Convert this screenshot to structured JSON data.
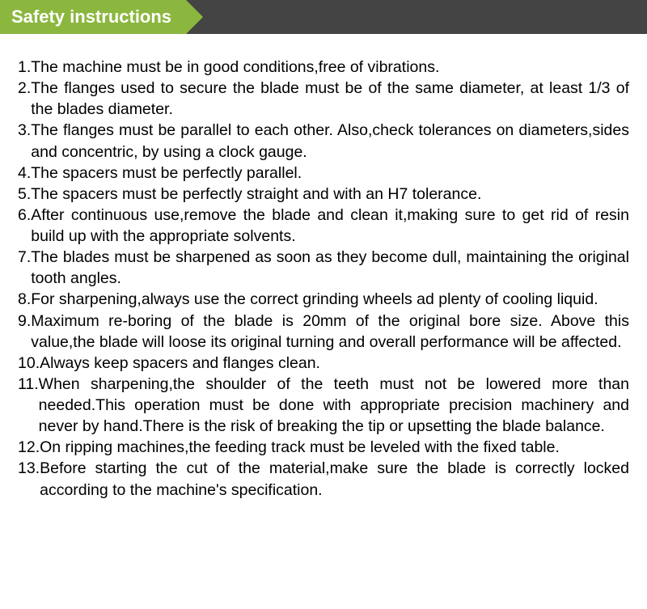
{
  "header": {
    "title": "Safety instructions",
    "tab_bg_color": "#8cb73f",
    "bar_bg_color": "#444444",
    "title_color": "#ffffff",
    "title_fontsize": 22
  },
  "body": {
    "text_color": "#000000",
    "fontsize": 19.5,
    "background_color": "#ffffff"
  },
  "instructions": [
    {
      "n": "1.",
      "text": "The machine must be in good conditions,free of vibrations."
    },
    {
      "n": "2.",
      "text": "The flanges used to secure the blade must be of the same diameter, at least 1/3 of the blades diameter."
    },
    {
      "n": "3.",
      "text": "The flanges must be parallel to each other. Also,check tolerances on diameters,sides and concentric, by using a clock gauge."
    },
    {
      "n": "4.",
      "text": "The spacers must be perfectly parallel."
    },
    {
      "n": "5.",
      "text": "The spacers must be perfectly straight and with an H7 tolerance."
    },
    {
      "n": "6.",
      "text": "After continuous use,remove the blade and clean it,making sure to get rid of resin build up with the appropriate solvents."
    },
    {
      "n": "7.",
      "text": "The blades must be sharpened as soon as they become dull, maintaining the original tooth angles."
    },
    {
      "n": "8.",
      "text": "For sharpening,always use the correct grinding wheels ad plenty of cooling liquid."
    },
    {
      "n": "9.",
      "text": "Maximum re-boring of the blade is 20mm of the original bore size. Above this value,the blade will loose its original turning and overall performance will be affected."
    },
    {
      "n": "10.",
      "text": "Always keep spacers and flanges clean."
    },
    {
      "n": "11.",
      "text": "When sharpening,the shoulder of the teeth must not be lowered more than needed.This operation must be done with appropriate precision machinery and never by hand.There is the risk of breaking the tip or upsetting the blade balance."
    },
    {
      "n": "12.",
      "text": "On ripping machines,the feeding track must be leveled with the fixed table."
    },
    {
      "n": "13.",
      "text": "Before starting the cut of the material,make sure the blade is correctly locked according to the machine's specification."
    }
  ]
}
